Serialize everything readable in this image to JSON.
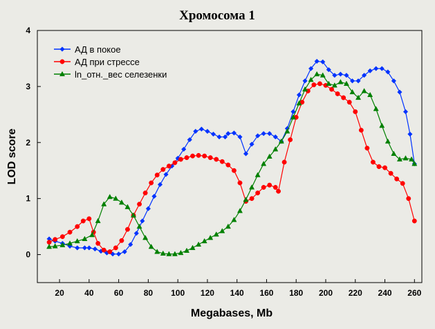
{
  "chart_data": {
    "type": "line",
    "title": "Хромосома 1",
    "xlabel": "Megabases, Mb",
    "ylabel": "LOD score",
    "xlim": [
      5,
      265
    ],
    "ylim": [
      -0.5,
      4
    ],
    "xticks": [
      20,
      40,
      60,
      80,
      100,
      120,
      140,
      160,
      180,
      200,
      220,
      240,
      260
    ],
    "yticks": [
      0,
      1,
      2,
      3,
      4
    ],
    "grid": false,
    "legend_position": "top-left",
    "series": [
      {
        "name": "АД в покое",
        "color": "#0033ff",
        "marker": "diamond",
        "points": [
          [
            13,
            0.28
          ],
          [
            17,
            0.24
          ],
          [
            22,
            0.2
          ],
          [
            27,
            0.15
          ],
          [
            32,
            0.12
          ],
          [
            37,
            0.12
          ],
          [
            40,
            0.12
          ],
          [
            44,
            0.1
          ],
          [
            48,
            0.06
          ],
          [
            52,
            0.03
          ],
          [
            56,
            0.01
          ],
          [
            60,
            0.01
          ],
          [
            64,
            0.05
          ],
          [
            68,
            0.18
          ],
          [
            72,
            0.38
          ],
          [
            76,
            0.6
          ],
          [
            80,
            0.82
          ],
          [
            84,
            1.04
          ],
          [
            88,
            1.25
          ],
          [
            92,
            1.43
          ],
          [
            96,
            1.58
          ],
          [
            100,
            1.72
          ],
          [
            104,
            1.88
          ],
          [
            108,
            2.05
          ],
          [
            112,
            2.2
          ],
          [
            116,
            2.24
          ],
          [
            120,
            2.2
          ],
          [
            124,
            2.15
          ],
          [
            128,
            2.1
          ],
          [
            132,
            2.1
          ],
          [
            134,
            2.16
          ],
          [
            138,
            2.17
          ],
          [
            142,
            2.1
          ],
          [
            146,
            1.8
          ],
          [
            150,
            1.97
          ],
          [
            154,
            2.12
          ],
          [
            158,
            2.16
          ],
          [
            162,
            2.16
          ],
          [
            166,
            2.1
          ],
          [
            170,
            2.02
          ],
          [
            174,
            2.25
          ],
          [
            178,
            2.55
          ],
          [
            182,
            2.85
          ],
          [
            186,
            3.1
          ],
          [
            190,
            3.32
          ],
          [
            194,
            3.45
          ],
          [
            198,
            3.44
          ],
          [
            202,
            3.3
          ],
          [
            206,
            3.2
          ],
          [
            210,
            3.22
          ],
          [
            214,
            3.2
          ],
          [
            218,
            3.1
          ],
          [
            222,
            3.1
          ],
          [
            226,
            3.2
          ],
          [
            230,
            3.28
          ],
          [
            234,
            3.32
          ],
          [
            238,
            3.32
          ],
          [
            242,
            3.26
          ],
          [
            246,
            3.1
          ],
          [
            250,
            2.9
          ],
          [
            254,
            2.55
          ],
          [
            257,
            2.15
          ],
          [
            260,
            1.62
          ]
        ]
      },
      {
        "name": "АД при стрессе",
        "color": "#ff0000",
        "marker": "circle",
        "points": [
          [
            13,
            0.22
          ],
          [
            17,
            0.27
          ],
          [
            22,
            0.32
          ],
          [
            27,
            0.4
          ],
          [
            32,
            0.5
          ],
          [
            36,
            0.6
          ],
          [
            40,
            0.64
          ],
          [
            43,
            0.4
          ],
          [
            46,
            0.2
          ],
          [
            50,
            0.08
          ],
          [
            54,
            0.05
          ],
          [
            58,
            0.12
          ],
          [
            62,
            0.25
          ],
          [
            66,
            0.45
          ],
          [
            70,
            0.7
          ],
          [
            74,
            0.9
          ],
          [
            78,
            1.1
          ],
          [
            82,
            1.28
          ],
          [
            86,
            1.42
          ],
          [
            90,
            1.52
          ],
          [
            94,
            1.58
          ],
          [
            98,
            1.64
          ],
          [
            102,
            1.7
          ],
          [
            106,
            1.73
          ],
          [
            110,
            1.76
          ],
          [
            114,
            1.77
          ],
          [
            118,
            1.76
          ],
          [
            122,
            1.73
          ],
          [
            126,
            1.7
          ],
          [
            130,
            1.66
          ],
          [
            134,
            1.6
          ],
          [
            138,
            1.5
          ],
          [
            142,
            1.28
          ],
          [
            146,
            0.95
          ],
          [
            150,
            1.0
          ],
          [
            154,
            1.1
          ],
          [
            158,
            1.2
          ],
          [
            162,
            1.24
          ],
          [
            166,
            1.2
          ],
          [
            168,
            1.13
          ],
          [
            172,
            1.65
          ],
          [
            176,
            2.05
          ],
          [
            180,
            2.45
          ],
          [
            184,
            2.72
          ],
          [
            188,
            2.92
          ],
          [
            192,
            3.03
          ],
          [
            196,
            3.05
          ],
          [
            200,
            3.02
          ],
          [
            204,
            2.95
          ],
          [
            208,
            2.87
          ],
          [
            212,
            2.8
          ],
          [
            216,
            2.72
          ],
          [
            220,
            2.55
          ],
          [
            224,
            2.22
          ],
          [
            228,
            1.9
          ],
          [
            232,
            1.65
          ],
          [
            236,
            1.57
          ],
          [
            240,
            1.55
          ],
          [
            244,
            1.45
          ],
          [
            248,
            1.35
          ],
          [
            252,
            1.27
          ],
          [
            256,
            1.0
          ],
          [
            260,
            0.6
          ]
        ]
      },
      {
        "name": "ln_отн._вес селезенки",
        "color": "#008000",
        "marker": "triangle",
        "points": [
          [
            13,
            0.14
          ],
          [
            17,
            0.15
          ],
          [
            22,
            0.17
          ],
          [
            27,
            0.2
          ],
          [
            32,
            0.24
          ],
          [
            37,
            0.28
          ],
          [
            42,
            0.35
          ],
          [
            46,
            0.6
          ],
          [
            50,
            0.9
          ],
          [
            54,
            1.03
          ],
          [
            58,
            1.0
          ],
          [
            62,
            0.93
          ],
          [
            66,
            0.85
          ],
          [
            70,
            0.7
          ],
          [
            74,
            0.5
          ],
          [
            78,
            0.3
          ],
          [
            82,
            0.14
          ],
          [
            86,
            0.05
          ],
          [
            90,
            0.02
          ],
          [
            94,
            0.01
          ],
          [
            98,
            0.01
          ],
          [
            102,
            0.03
          ],
          [
            106,
            0.07
          ],
          [
            110,
            0.12
          ],
          [
            114,
            0.18
          ],
          [
            118,
            0.24
          ],
          [
            122,
            0.3
          ],
          [
            126,
            0.36
          ],
          [
            130,
            0.42
          ],
          [
            134,
            0.5
          ],
          [
            138,
            0.62
          ],
          [
            142,
            0.78
          ],
          [
            146,
            0.98
          ],
          [
            150,
            1.2
          ],
          [
            154,
            1.42
          ],
          [
            158,
            1.62
          ],
          [
            162,
            1.75
          ],
          [
            166,
            1.88
          ],
          [
            170,
            2.02
          ],
          [
            174,
            2.2
          ],
          [
            178,
            2.45
          ],
          [
            182,
            2.7
          ],
          [
            186,
            2.95
          ],
          [
            190,
            3.12
          ],
          [
            194,
            3.22
          ],
          [
            198,
            3.2
          ],
          [
            202,
            3.05
          ],
          [
            206,
            3.02
          ],
          [
            210,
            3.08
          ],
          [
            214,
            3.05
          ],
          [
            218,
            2.9
          ],
          [
            222,
            2.8
          ],
          [
            226,
            2.92
          ],
          [
            230,
            2.85
          ],
          [
            234,
            2.6
          ],
          [
            238,
            2.3
          ],
          [
            242,
            2.02
          ],
          [
            246,
            1.8
          ],
          [
            250,
            1.7
          ],
          [
            254,
            1.72
          ],
          [
            258,
            1.7
          ],
          [
            260,
            1.62
          ]
        ]
      }
    ]
  }
}
